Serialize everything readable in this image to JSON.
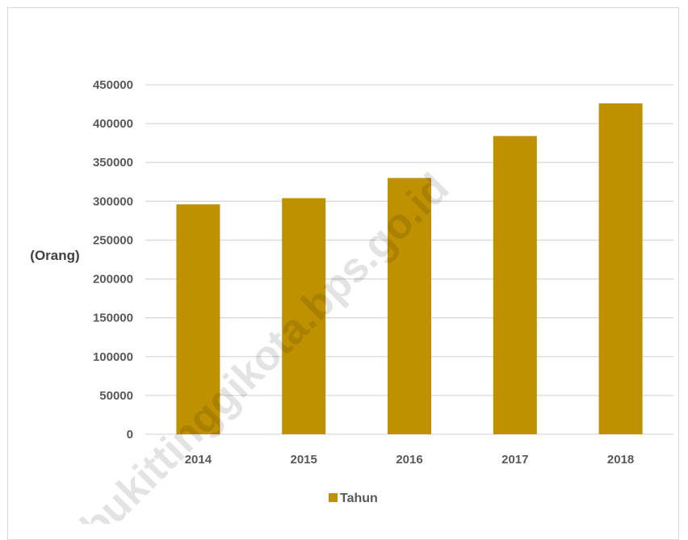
{
  "chart_data": {
    "type": "bar",
    "categories": [
      "2014",
      "2015",
      "2016",
      "2017",
      "2018"
    ],
    "series": [
      {
        "name": "Tahun",
        "values": [
          296000,
          304000,
          330000,
          384000,
          426000
        ],
        "color": "#bf9000"
      }
    ],
    "ylabel": "(Orang)",
    "xlabel": "",
    "ylim": [
      0,
      450000
    ],
    "yticks": [
      0,
      50000,
      100000,
      150000,
      200000,
      250000,
      300000,
      350000,
      400000,
      450000
    ],
    "grid": true,
    "legend": "bottom",
    "gridColor": "#d9d9d9"
  },
  "watermark": "bukittinggikota.bps.go.id"
}
